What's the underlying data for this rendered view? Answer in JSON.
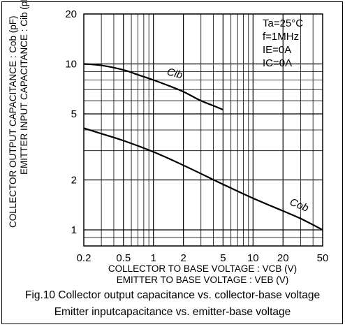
{
  "chart_data": {
    "type": "line",
    "xscale": "log",
    "yscale": "log",
    "xlim": [
      0.2,
      50
    ],
    "ylim": [
      0.8,
      20
    ],
    "xticks": [
      "0.2",
      "0.5",
      "1",
      "2",
      "5",
      "10",
      "20",
      "50"
    ],
    "yticks": [
      "1",
      "2",
      "5",
      "10",
      "20"
    ],
    "ylabel_line1": "COLLECTOR OUTPUT CAPACITANCE : Cob (pF)",
    "ylabel_line2": "EMITTER INPUT CAPACITANCE : Cib (pF)",
    "xlabel_line1": "COLLECTOR TO BASE VOLTAGE : VCB (V)",
    "xlabel_line2": "EMITTER TO BASE VOLTAGE : VEB (V)",
    "conditions": [
      "Ta=25°C",
      "f=1MHz",
      "IE=0A",
      "IC=0A"
    ],
    "series": [
      {
        "name": "Cib",
        "x": [
          0.2,
          0.3,
          0.5,
          0.7,
          1,
          1.5,
          2,
          3,
          4,
          5
        ],
        "y": [
          10,
          9.8,
          9.2,
          8.6,
          8.0,
          7.3,
          6.8,
          6.0,
          5.6,
          5.3
        ]
      },
      {
        "name": "Cob",
        "x": [
          0.2,
          0.3,
          0.5,
          1,
          2,
          5,
          10,
          20,
          30,
          50
        ],
        "y": [
          4.1,
          3.8,
          3.45,
          2.95,
          2.45,
          1.88,
          1.55,
          1.3,
          1.17,
          1.0
        ]
      }
    ],
    "grid": true,
    "legend": "top-right"
  },
  "caption": {
    "line1": "Fig.10 Collector output capacitance vs. collector-base voltage",
    "line2": "Emitter inputcapacitance vs. emitter-base voltage"
  }
}
